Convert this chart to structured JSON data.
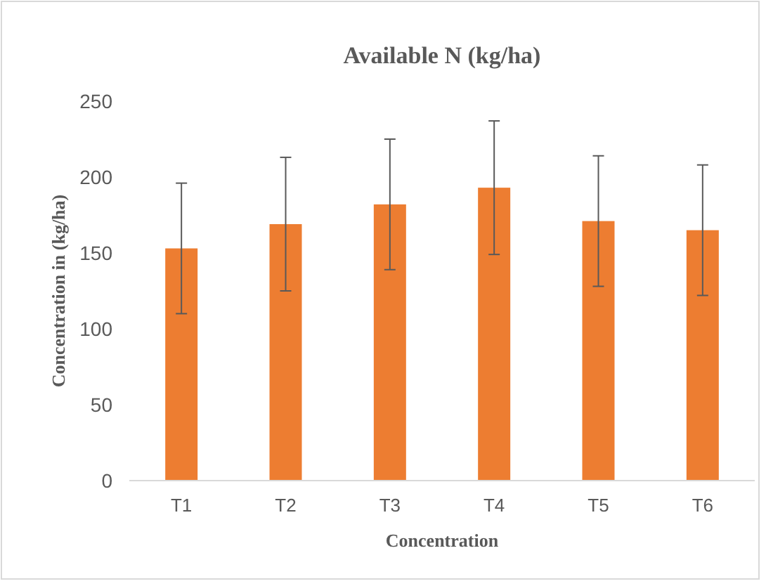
{
  "chart_data": {
    "type": "bar",
    "title": "Available N (kg/ha)",
    "xlabel": "Concentration",
    "ylabel": "Concentration in (kg/ha)",
    "categories": [
      "T1",
      "T2",
      "T3",
      "T4",
      "T5",
      "T6"
    ],
    "values": [
      153,
      169,
      182,
      193,
      171,
      165
    ],
    "errors": [
      43,
      44,
      43,
      44,
      43,
      43
    ],
    "color": "#ed7d31",
    "ylim": [
      0,
      250
    ],
    "yticks": [
      0,
      50,
      100,
      150,
      200,
      250
    ],
    "grid": false
  }
}
